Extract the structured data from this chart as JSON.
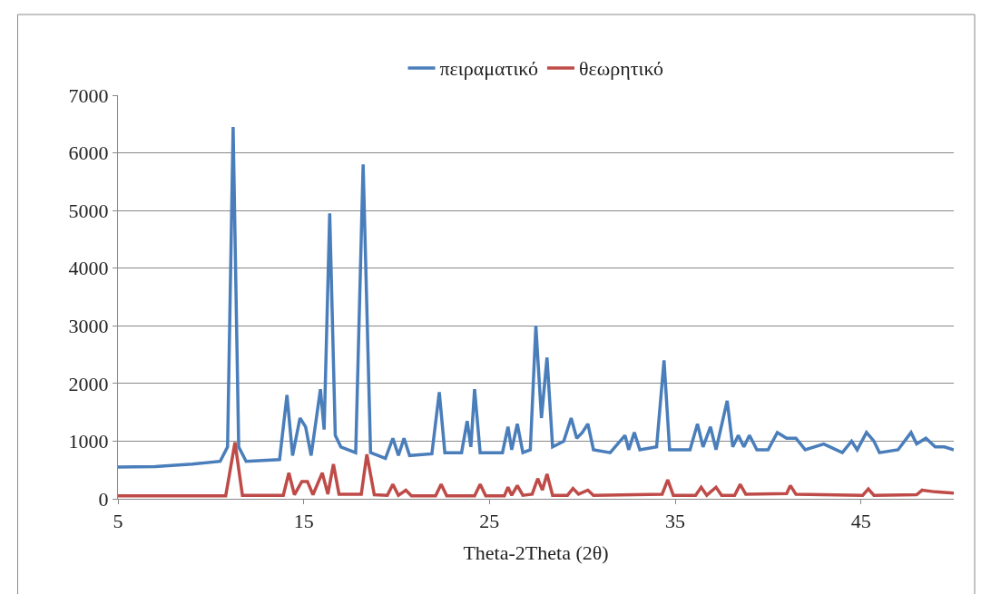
{
  "chart_data": {
    "type": "line",
    "xlabel": "Theta-2Theta (2θ)",
    "xlim": [
      5,
      50
    ],
    "xticks": [
      5,
      15,
      25,
      35,
      45
    ],
    "ylim": [
      0,
      7000
    ],
    "yticks": [
      0,
      1000,
      2000,
      3000,
      4000,
      5000,
      6000,
      7000
    ],
    "grid": "y",
    "legend": "top",
    "marker": "none",
    "line_style": "solid",
    "series": [
      {
        "name": "πειραματικό",
        "color": "#4a7ebb",
        "x": [
          5,
          7,
          9,
          10.5,
          10.9,
          11.2,
          11.5,
          11.9,
          13.7,
          14.1,
          14.4,
          14.8,
          15.1,
          15.4,
          15.9,
          16.1,
          16.4,
          16.7,
          17.0,
          17.8,
          18.2,
          18.6,
          19.4,
          19.8,
          20.1,
          20.4,
          20.7,
          21.9,
          22.3,
          22.6,
          23.5,
          23.8,
          24.0,
          24.2,
          24.5,
          25.7,
          26.0,
          26.2,
          26.5,
          26.8,
          27.2,
          27.5,
          27.8,
          28.1,
          28.4,
          29.0,
          29.4,
          29.7,
          30.0,
          30.3,
          30.6,
          31.5,
          32.3,
          32.5,
          32.8,
          33.1,
          34.0,
          34.4,
          34.7,
          35.8,
          36.2,
          36.5,
          36.9,
          37.2,
          37.8,
          38.1,
          38.4,
          38.7,
          39.0,
          39.4,
          40.0,
          40.5,
          41.0,
          41.5,
          42.0,
          43.0,
          44.0,
          44.5,
          44.8,
          45.3,
          45.7,
          46.0,
          47.0,
          47.7,
          48.0,
          48.5,
          49.0,
          49.5,
          50
        ],
        "values": [
          550,
          560,
          600,
          650,
          900,
          6450,
          900,
          650,
          680,
          1800,
          750,
          1400,
          1250,
          750,
          1900,
          1200,
          4950,
          1100,
          900,
          800,
          5800,
          800,
          700,
          1050,
          750,
          1050,
          750,
          780,
          1850,
          800,
          800,
          1350,
          900,
          1900,
          800,
          800,
          1250,
          850,
          1300,
          800,
          850,
          3000,
          1400,
          2450,
          900,
          1000,
          1400,
          1050,
          1150,
          1300,
          850,
          800,
          1100,
          850,
          1150,
          850,
          900,
          2400,
          850,
          850,
          1300,
          900,
          1250,
          850,
          1700,
          900,
          1100,
          900,
          1100,
          850,
          850,
          1150,
          1050,
          1050,
          850,
          950,
          800,
          1000,
          850,
          1150,
          1000,
          800,
          850,
          1150,
          950,
          1050,
          900,
          900,
          850
        ]
      },
      {
        "name": "θεωρητικό",
        "color": "#be4b48",
        "x": [
          5,
          10.8,
          11.3,
          11.7,
          13.9,
          14.2,
          14.5,
          14.9,
          15.2,
          15.5,
          16.0,
          16.3,
          16.6,
          16.9,
          18.1,
          18.4,
          18.8,
          19.5,
          19.8,
          20.1,
          20.5,
          20.8,
          22.1,
          22.4,
          22.7,
          24.2,
          24.5,
          24.8,
          25.8,
          26.0,
          26.2,
          26.5,
          26.8,
          27.3,
          27.6,
          27.85,
          28.1,
          28.4,
          29.2,
          29.5,
          29.8,
          30.3,
          30.6,
          34.3,
          34.6,
          34.9,
          36.1,
          36.4,
          36.7,
          37.2,
          37.5,
          38.2,
          38.5,
          38.8,
          41.0,
          41.2,
          41.5,
          45.1,
          45.4,
          45.7,
          48.0,
          48.3,
          49,
          50
        ],
        "values": [
          50,
          50,
          980,
          60,
          60,
          450,
          70,
          300,
          300,
          70,
          450,
          80,
          600,
          80,
          80,
          770,
          70,
          60,
          250,
          60,
          150,
          50,
          50,
          250,
          50,
          50,
          250,
          50,
          50,
          200,
          60,
          230,
          60,
          80,
          350,
          150,
          430,
          60,
          60,
          180,
          80,
          150,
          60,
          80,
          330,
          60,
          60,
          200,
          60,
          200,
          60,
          60,
          250,
          80,
          90,
          230,
          80,
          60,
          170,
          60,
          70,
          150,
          120,
          100
        ]
      }
    ]
  }
}
